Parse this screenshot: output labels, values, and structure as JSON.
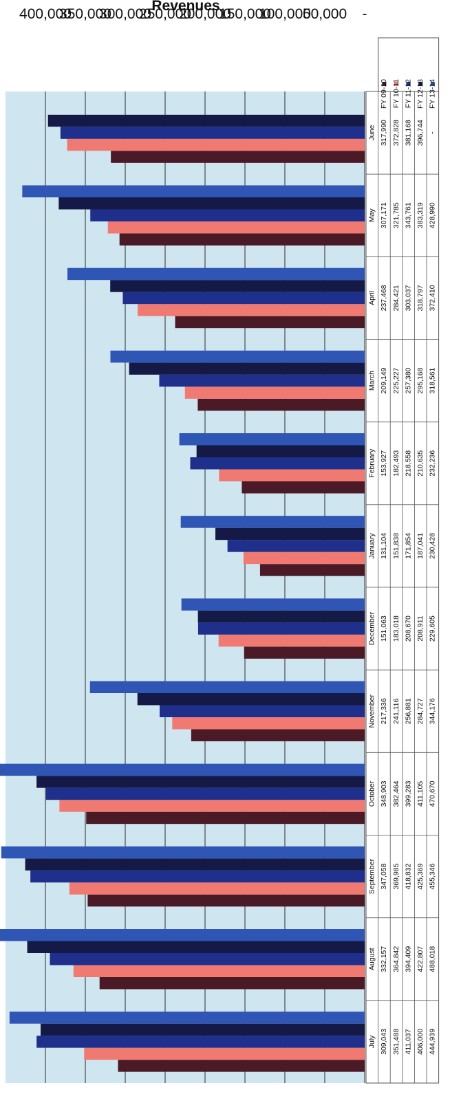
{
  "chart_data": {
    "type": "bar",
    "orientation": "horizontal",
    "title": "",
    "ylabel": "Revenues",
    "xlabel": "",
    "ylim": [
      0,
      450000
    ],
    "y_ticks": [
      "-",
      "50,000",
      "100,000",
      "150,000",
      "200,000",
      "250,000",
      "300,000",
      "350,000",
      "400,000"
    ],
    "grid": true,
    "legend_position": "left of data table",
    "categories": [
      "July",
      "August",
      "September",
      "October",
      "November",
      "December",
      "January",
      "February",
      "March",
      "April",
      "May",
      "June"
    ],
    "series": [
      {
        "name": "FY 09-10",
        "color": "#4a1a26",
        "values": [
          309043,
          332157,
          347058,
          348903,
          217336,
          151063,
          131104,
          153927,
          209149,
          237468,
          307171,
          317990
        ],
        "labels": [
          "309,043",
          "332,157",
          "347,058",
          "348,903",
          "217,336",
          "151,063",
          "131,104",
          "153,927",
          "209,149",
          "237,468",
          "307,171",
          "317,990"
        ]
      },
      {
        "name": "FY 10-11",
        "color": "#f07a72",
        "values": [
          351488,
          364842,
          369985,
          382464,
          241116,
          183018,
          151838,
          182493,
          225227,
          284421,
          321785,
          372828
        ],
        "labels": [
          "351,488",
          "364,842",
          "369,985",
          "382,464",
          "241,116",
          "183,018",
          "151,838",
          "182,493",
          "225,227",
          "284,421",
          "321,785",
          "372,828"
        ]
      },
      {
        "name": "FY 11-12",
        "color": "#1f2f8c",
        "values": [
          411037,
          394409,
          418832,
          399283,
          256881,
          208670,
          171854,
          218558,
          257380,
          303037,
          343761,
          381168
        ],
        "labels": [
          "411,037",
          "394,409",
          "418,832",
          "399,283",
          "256,881",
          "208,670",
          "171,854",
          "218,558",
          "257,380",
          "303,037",
          "343,761",
          "381,168"
        ]
      },
      {
        "name": "FY 12-13",
        "color": "#141a45",
        "values": [
          406000,
          422807,
          425369,
          411105,
          284727,
          208911,
          187041,
          210635,
          295168,
          318797,
          383319,
          396744
        ],
        "labels": [
          "406,000",
          "422,807",
          "425,369",
          "411,105",
          "284,727",
          "208,911",
          "187,041",
          "210,635",
          "295,168",
          "318,797",
          "383,319",
          "396,744"
        ]
      },
      {
        "name": "FY 13-14",
        "color": "#2f55b5",
        "values": [
          444939,
          488018,
          455346,
          470670,
          344176,
          229605,
          230428,
          232236,
          318561,
          372410,
          428990,
          null
        ],
        "labels": [
          "444,939",
          "488,018",
          "455,346",
          "470,670",
          "344,176",
          "229,605",
          "230,428",
          "232,236",
          "318,561",
          "372,410",
          "428,990",
          "-"
        ]
      }
    ]
  },
  "colors": {
    "plot_background": "#cfe6f1",
    "gridline": "#2a2a2a",
    "table_border": "#555555"
  }
}
